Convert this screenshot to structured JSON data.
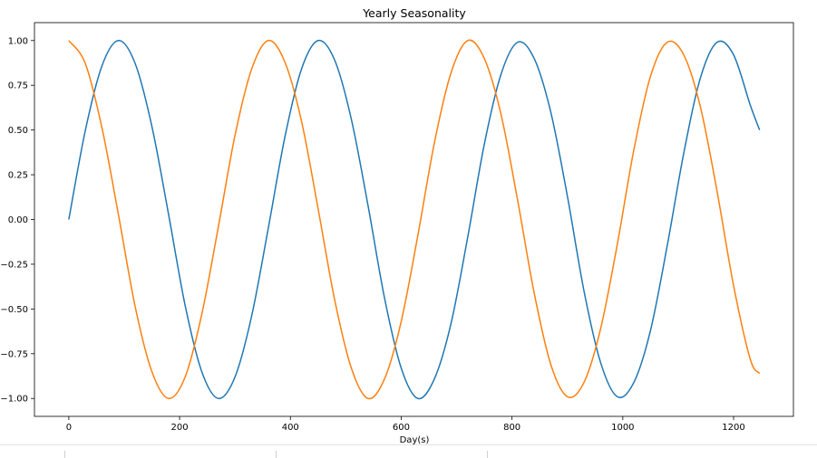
{
  "chart_data": {
    "type": "line",
    "title": "Yearly Seasonality",
    "xlabel": "Day(s)",
    "ylabel": "",
    "xlim": [
      -62,
      1308
    ],
    "ylim": [
      -1.1,
      1.1
    ],
    "x_ticks": [
      0,
      200,
      400,
      600,
      800,
      1000,
      1200
    ],
    "y_ticks": [
      -1.0,
      -0.75,
      -0.5,
      -0.25,
      0.0,
      0.25,
      0.5,
      0.75,
      1.0
    ],
    "x_tick_labels": [
      "0",
      "200",
      "400",
      "600",
      "800",
      "1000",
      "1200"
    ],
    "y_tick_labels": [
      "−1.00",
      "−0.75",
      "−0.50",
      "−0.25",
      "0.00",
      "0.25",
      "0.50",
      "0.75",
      "1.00"
    ],
    "grid": false,
    "legend": "none",
    "x": [
      0,
      30,
      60,
      90,
      120,
      150,
      180,
      210,
      240,
      270,
      300,
      330,
      360,
      390,
      420,
      450,
      480,
      510,
      540,
      570,
      600,
      630,
      660,
      690,
      720,
      750,
      780,
      810,
      840,
      870,
      900,
      930,
      960,
      990,
      1020,
      1050,
      1080,
      1110,
      1140,
      1170,
      1200,
      1230,
      1247
    ],
    "series": [
      {
        "color": "#1f77b4",
        "values": [
          0.0,
          0.5,
          0.86,
          1.0,
          0.87,
          0.52,
          0.03,
          -0.48,
          -0.85,
          -1.0,
          -0.88,
          -0.54,
          -0.05,
          0.46,
          0.84,
          1.0,
          0.89,
          0.56,
          0.08,
          -0.44,
          -0.83,
          -1.0,
          -0.89,
          -0.58,
          -0.1,
          0.42,
          0.81,
          0.99,
          0.9,
          0.6,
          0.13,
          -0.4,
          -0.8,
          -0.99,
          -0.91,
          -0.62,
          -0.15,
          0.37,
          0.79,
          0.99,
          0.92,
          0.64,
          0.5
        ]
      },
      {
        "color": "#ff7f0e",
        "values": [
          1.0,
          0.87,
          0.51,
          0.02,
          -0.49,
          -0.85,
          -1.0,
          -0.88,
          -0.53,
          -0.04,
          0.47,
          0.84,
          1.0,
          0.88,
          0.55,
          0.06,
          -0.45,
          -0.83,
          -1.0,
          -0.89,
          -0.57,
          -0.09,
          0.43,
          0.82,
          1.0,
          0.9,
          0.59,
          0.11,
          -0.41,
          -0.81,
          -0.99,
          -0.91,
          -0.61,
          -0.14,
          0.39,
          0.8,
          0.99,
          0.92,
          0.63,
          0.16,
          -0.37,
          -0.78,
          -0.86
        ]
      }
    ]
  }
}
